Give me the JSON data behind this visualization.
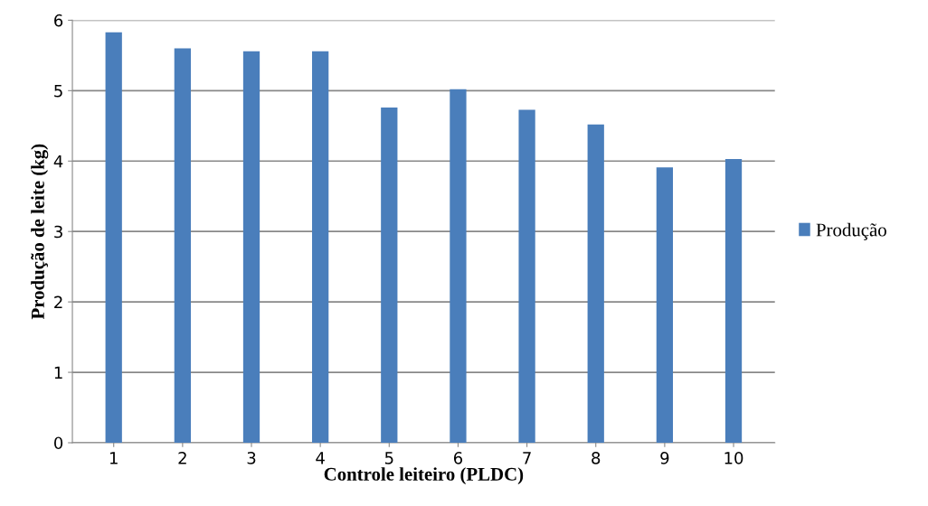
{
  "chart_data": {
    "type": "bar",
    "xlabel": "Controle leiteiro (PLDC)",
    "ylabel": "Produção de leite (kg)",
    "categories": [
      "1",
      "2",
      "3",
      "4",
      "5",
      "6",
      "7",
      "8",
      "9",
      "10"
    ],
    "series": [
      {
        "name": "Produção",
        "color": "#4a7ebb",
        "values": [
          5.83,
          5.6,
          5.56,
          5.56,
          4.76,
          5.02,
          4.73,
          4.52,
          3.91,
          4.03
        ]
      }
    ],
    "ylim": [
      0,
      6
    ],
    "yticks": [
      0,
      1,
      2,
      3,
      4,
      5,
      6
    ],
    "grid": "y",
    "legend": "right"
  }
}
